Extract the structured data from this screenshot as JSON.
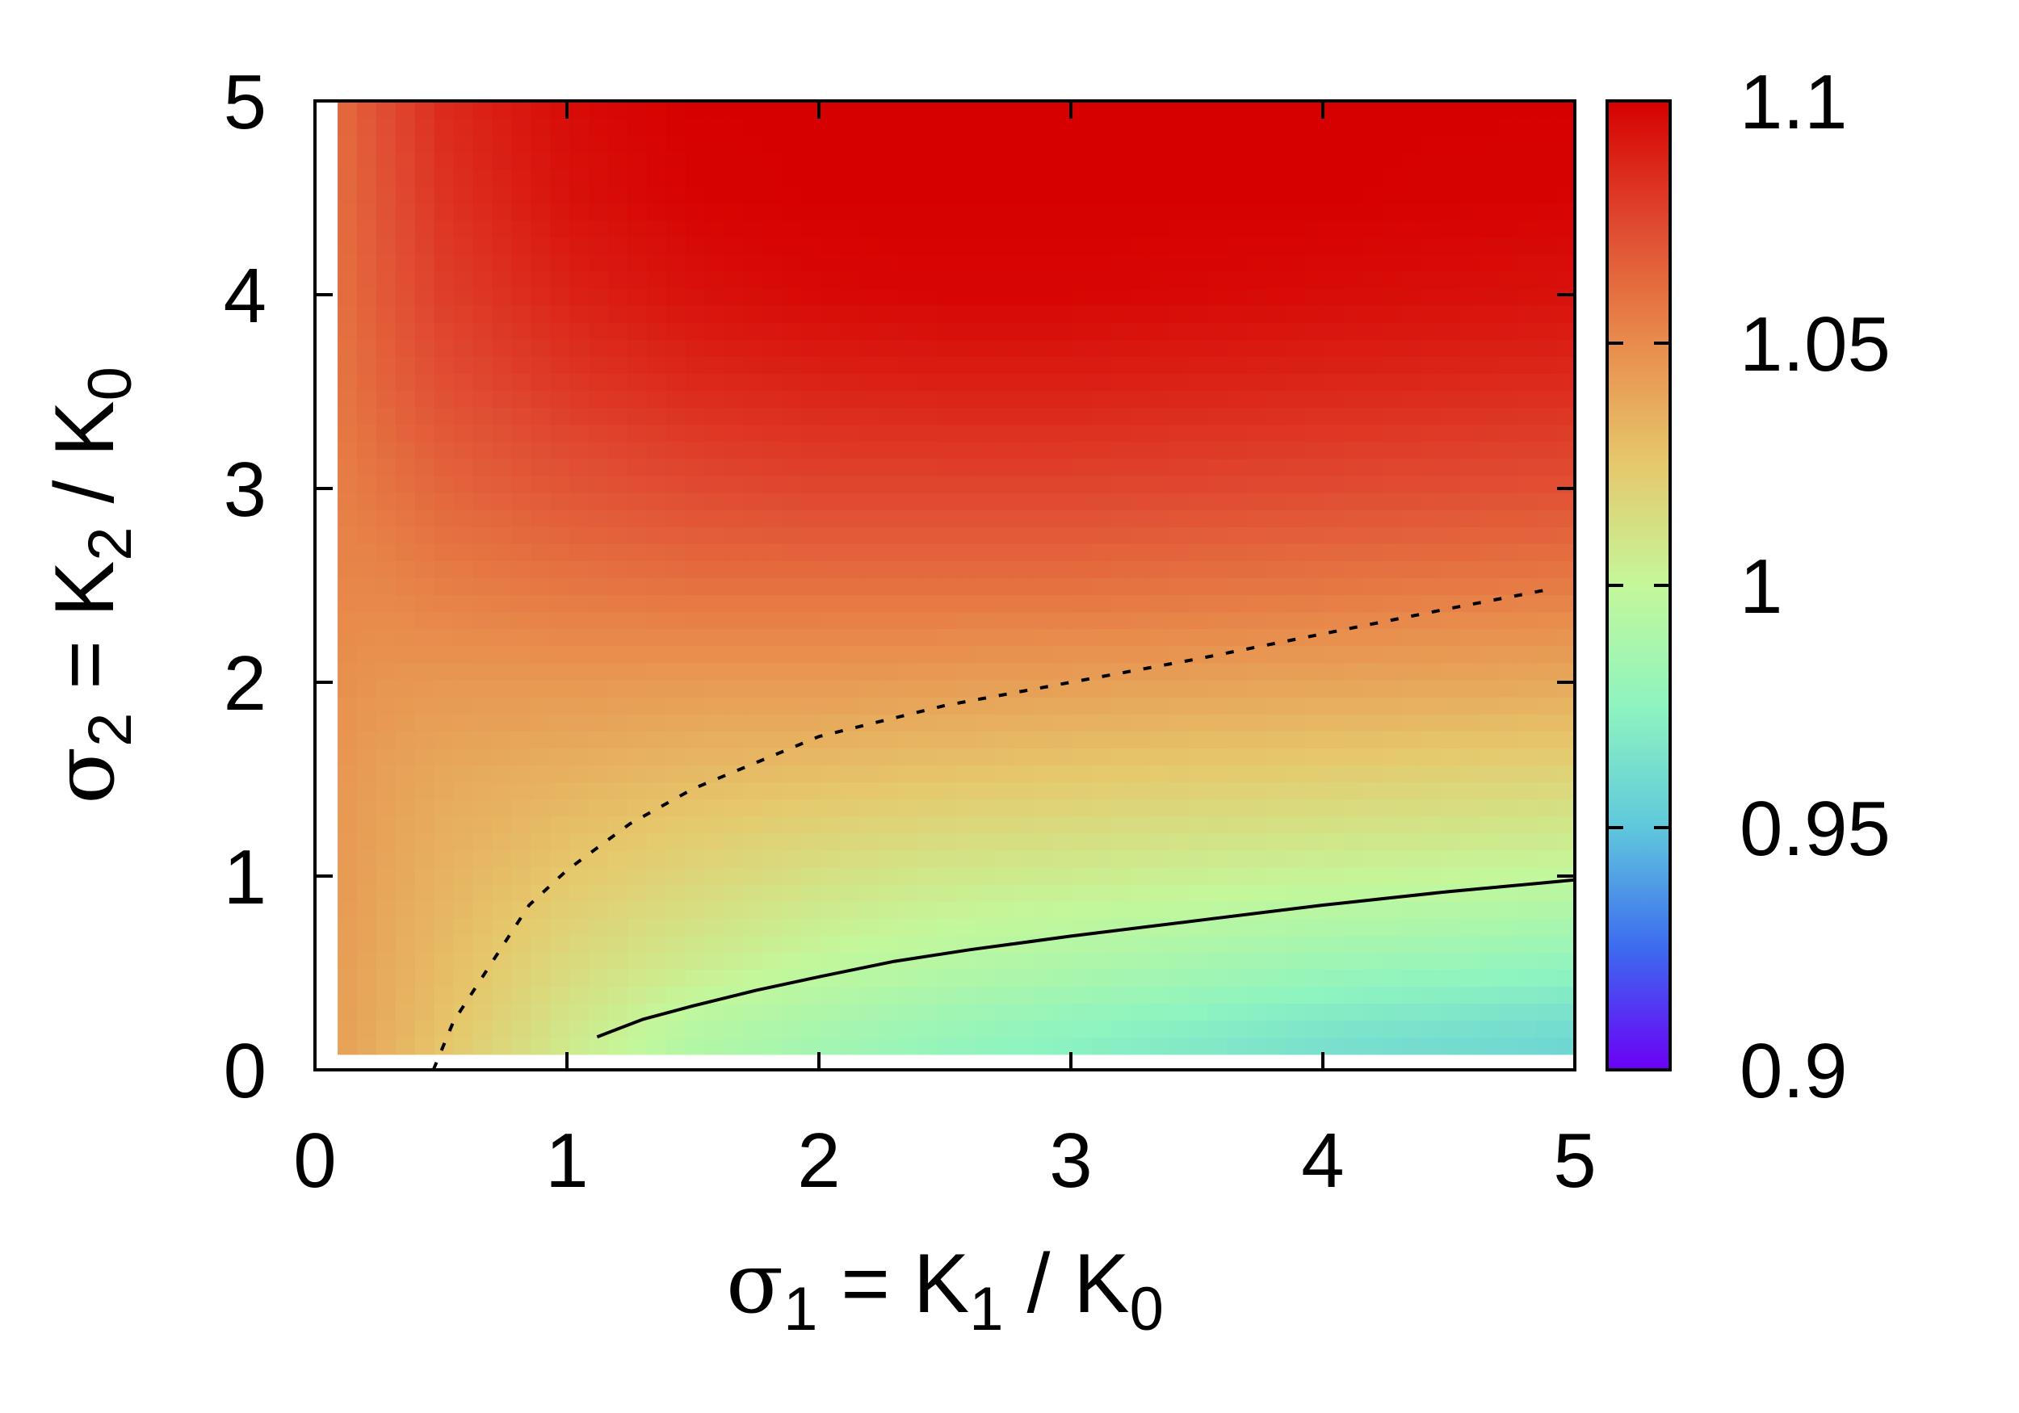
{
  "chart_data": {
    "type": "heatmap",
    "x_axis": {
      "symbol": "σ",
      "sub1": "1",
      "rest": " = K",
      "sub2": "1",
      "tail": " / K",
      "sub3": "0",
      "range": [
        0,
        5
      ],
      "ticks": [
        "0",
        "1",
        "2",
        "3",
        "4",
        "5"
      ]
    },
    "y_axis": {
      "symbol": "σ",
      "sub1": "2",
      "rest": " = K",
      "sub2": "2",
      "tail": " / K",
      "sub3": "0",
      "range": [
        0,
        5
      ],
      "ticks": [
        "0",
        "1",
        "2",
        "3",
        "4",
        "5"
      ]
    },
    "colorbar": {
      "range": [
        0.9,
        1.1
      ],
      "ticks": [
        "0.9",
        "0.95",
        "1",
        "1.05",
        "1.1"
      ],
      "colormap": [
        "#6b00f5",
        "#3d6af0",
        "#5fc8dc",
        "#8ef4c0",
        "#c4f79a",
        "#e6c86c",
        "#e88c4c",
        "#e04830",
        "#d60000"
      ]
    },
    "x_samples": [
      0.0,
      0.25,
      0.5,
      1.0,
      1.5,
      2.0,
      2.5,
      3.0,
      4.0,
      5.0
    ],
    "y_samples": [
      0.0,
      0.25,
      0.5,
      1.0,
      1.5,
      2.0,
      2.5,
      3.0,
      3.5,
      4.0,
      4.5,
      5.0
    ],
    "values": [
      [
        1.045,
        1.035,
        1.025,
        1.005,
        0.99,
        0.982,
        0.975,
        0.97,
        0.96,
        0.955
      ],
      [
        1.045,
        1.037,
        1.028,
        1.01,
        0.995,
        0.988,
        0.982,
        0.977,
        0.968,
        0.962
      ],
      [
        1.046,
        1.038,
        1.03,
        1.015,
        1.005,
        0.997,
        0.992,
        0.988,
        0.98,
        0.975
      ],
      [
        1.047,
        1.04,
        1.034,
        1.025,
        1.018,
        1.012,
        1.008,
        1.006,
        1.002,
        0.999
      ],
      [
        1.048,
        1.042,
        1.038,
        1.034,
        1.03,
        1.028,
        1.026,
        1.024,
        1.021,
        1.018
      ],
      [
        1.05,
        1.046,
        1.045,
        1.045,
        1.044,
        1.044,
        1.043,
        1.042,
        1.04,
        1.038
      ],
      [
        1.052,
        1.052,
        1.055,
        1.058,
        1.06,
        1.06,
        1.06,
        1.06,
        1.058,
        1.056
      ],
      [
        1.053,
        1.058,
        1.064,
        1.07,
        1.074,
        1.076,
        1.076,
        1.076,
        1.074,
        1.072
      ],
      [
        1.054,
        1.064,
        1.072,
        1.08,
        1.085,
        1.087,
        1.088,
        1.088,
        1.086,
        1.084
      ],
      [
        1.055,
        1.068,
        1.078,
        1.088,
        1.094,
        1.097,
        1.098,
        1.098,
        1.096,
        1.094
      ],
      [
        1.056,
        1.07,
        1.082,
        1.094,
        1.099,
        1.1,
        1.1,
        1.1,
        1.1,
        1.099
      ],
      [
        1.056,
        1.072,
        1.085,
        1.096,
        1.1,
        1.1,
        1.1,
        1.1,
        1.1,
        1.1
      ]
    ],
    "contours": [
      {
        "level": 1.0,
        "style": "solid",
        "points": [
          [
            1.12,
            0.17
          ],
          [
            1.3,
            0.26
          ],
          [
            1.5,
            0.33
          ],
          [
            1.75,
            0.41
          ],
          [
            2.0,
            0.48
          ],
          [
            2.3,
            0.56
          ],
          [
            2.6,
            0.62
          ],
          [
            3.0,
            0.69
          ],
          [
            3.5,
            0.77
          ],
          [
            4.0,
            0.85
          ],
          [
            4.5,
            0.92
          ],
          [
            5.0,
            0.98
          ]
        ]
      },
      {
        "level": 1.05,
        "style": "dashed",
        "points": [
          [
            0.47,
            0.0
          ],
          [
            0.55,
            0.25
          ],
          [
            0.7,
            0.55
          ],
          [
            0.85,
            0.85
          ],
          [
            1.0,
            1.03
          ],
          [
            1.25,
            1.27
          ],
          [
            1.5,
            1.45
          ],
          [
            2.0,
            1.72
          ],
          [
            2.5,
            1.88
          ],
          [
            3.0,
            2.0
          ],
          [
            3.5,
            2.12
          ],
          [
            4.0,
            2.25
          ],
          [
            4.5,
            2.38
          ],
          [
            4.9,
            2.48
          ]
        ]
      }
    ]
  }
}
